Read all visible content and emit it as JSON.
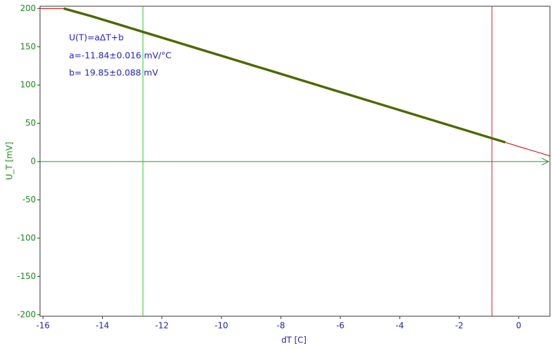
{
  "chart_data": {
    "type": "line",
    "xlabel": "dT [C]",
    "ylabel": "U_T [mV]",
    "annotations": [
      "U(T)=aΔT+b",
      "a=-11.84±0.016 mV/°C",
      "b= 19.85±0.088 mV"
    ],
    "xlim": [
      -16.1,
      1.05
    ],
    "ylim": [
      -202,
      203
    ],
    "xticks": [
      -16,
      -14,
      -12,
      -10,
      -8,
      -6,
      -4,
      -2,
      0
    ],
    "yticks": [
      200,
      150,
      100,
      50,
      0,
      -50,
      -100,
      -150,
      -200
    ],
    "series": [
      {
        "color": "#4a6a00",
        "x": [
          -15.3,
          -14.4,
          -13.5,
          -12.6,
          -11.7,
          -10.8,
          -9.9,
          -9.0,
          -8.1,
          -7.2,
          -6.3,
          -5.4,
          -4.5,
          -3.6,
          -2.7,
          -1.8,
          -0.9,
          -0.45
        ],
        "values": [
          200,
          190.3,
          179.7,
          169.0,
          158.4,
          147.7,
          137.1,
          126.4,
          115.8,
          105.1,
          94.4,
          83.8,
          73.1,
          62.5,
          51.8,
          41.2,
          30.5,
          25.2
        ]
      },
      {
        "color": "#cc0000",
        "x": [
          -16.1,
          -15.3,
          1.05
        ],
        "values": [
          200,
          200,
          7.4
        ]
      }
    ],
    "cursors": [
      {
        "x": -12.64,
        "color": "#22cc22"
      },
      {
        "x": -0.9,
        "color": "#cc2222"
      }
    ],
    "zero_line_color": "#2a8a2a"
  }
}
